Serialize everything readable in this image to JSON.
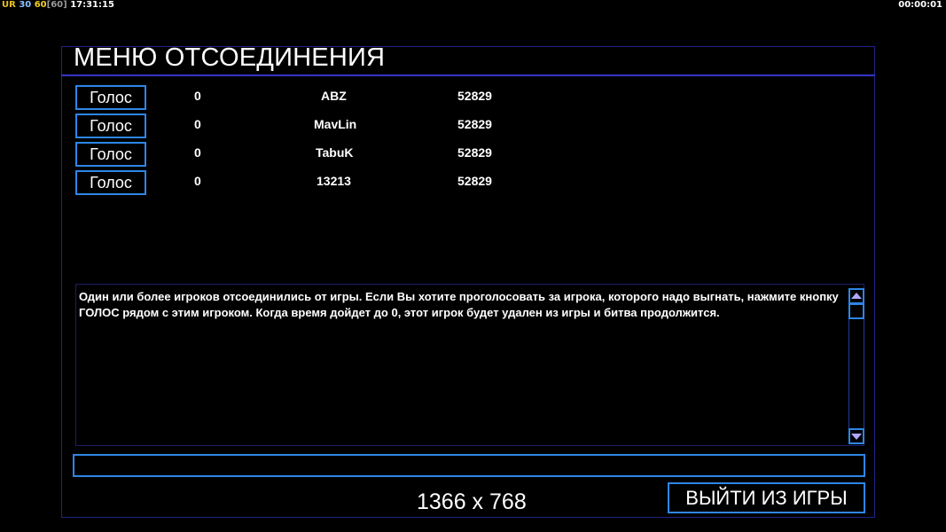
{
  "overlay": {
    "api": "UR",
    "fps": "30",
    "target_fps": "60",
    "target_fps_bracket": "[60]",
    "clock": "17:31:15",
    "timer": "00:00:01"
  },
  "title": "МЕНЮ ОТСОЕДИНЕНИЯ",
  "players": [
    {
      "vote_label": "Голос",
      "votes": "0",
      "name": "ABZ",
      "id": "52829"
    },
    {
      "vote_label": "Голос",
      "votes": "0",
      "name": "MavLin",
      "id": "52829"
    },
    {
      "vote_label": "Голос",
      "votes": "0",
      "name": "TabuK",
      "id": "52829"
    },
    {
      "vote_label": "Голос",
      "votes": "0",
      "name": "13213",
      "id": "52829"
    }
  ],
  "message": "Один или более игроков отсоединились от игры. Если Вы хотите проголосовать за игрока, которого надо выгнать, нажмите кнопку ГОЛОС рядом с этим игроком. Когда время дойдет до 0, этот игрок будет удален из игры и битва продолжится.",
  "chat_input": {
    "value": ""
  },
  "exit_label": "ВЫЙТИ ИЗ ИГРЫ",
  "resolution": "1366 x 768",
  "colors": {
    "accent": "#2e86e6",
    "frame": "#22228a",
    "header_line": "#3434c8"
  }
}
